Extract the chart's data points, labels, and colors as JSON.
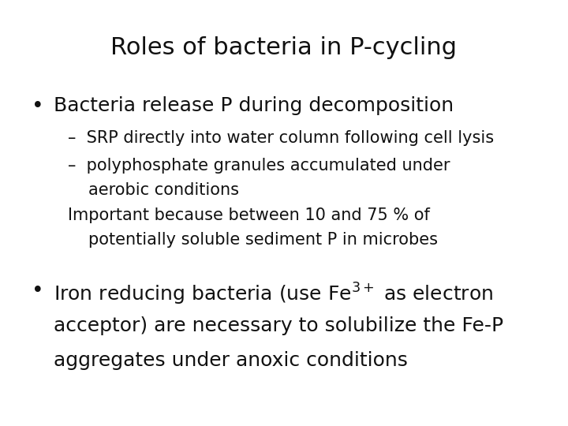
{
  "title": "Roles of bacteria in P-cycling",
  "title_fontsize": 22,
  "background_color": "#ffffff",
  "text_color": "#111111",
  "bullet1": "Bacteria release P during decomposition",
  "bullet1_fontsize": 18,
  "sub1": "–  SRP directly into water column following cell lysis",
  "sub2_line1": "–  polyphosphate granules accumulated under",
  "sub2_line2": "aerobic conditions",
  "sub3_line1": "Important because between 10 and 75 % of",
  "sub3_line2": "potentially soluble sediment P in microbes",
  "sub_fontsize": 15,
  "bullet2_line1_prefix": "Iron reducing bacteria (use Fe",
  "bullet2_line1_suffix": " as electron",
  "bullet2_line2": "acceptor) are necessary to solubilize the Fe-P",
  "bullet2_line3": "aggregates under anoxic conditions",
  "bullet2_fontsize": 18,
  "font_family": "DejaVu Sans"
}
